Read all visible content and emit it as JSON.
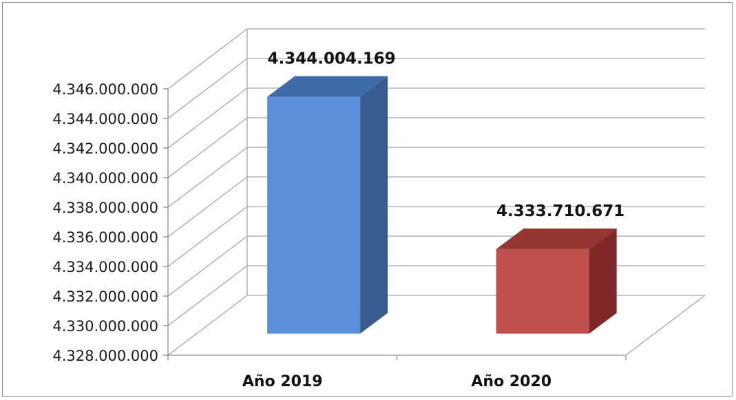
{
  "chart_data": {
    "type": "bar",
    "style": "3d-column",
    "categories": [
      "Año 2019",
      "Año 2020"
    ],
    "values": [
      4344004169,
      4333710671
    ],
    "data_labels": [
      "4.344.004.169",
      "4.333.710.671"
    ],
    "colors": [
      "#5b8fd9",
      "#c0504d"
    ],
    "side_colors": [
      "#375b8c",
      "#7f2a28"
    ],
    "top_colors": [
      "#3f6aa8",
      "#963632"
    ],
    "ylim": [
      4328000000,
      4346000000
    ],
    "ytick_step": 2000000,
    "yticks": [
      "4.328.000.000",
      "4.330.000.000",
      "4.332.000.000",
      "4.334.000.000",
      "4.336.000.000",
      "4.338.000.000",
      "4.340.000.000",
      "4.342.000.000",
      "4.344.000.000",
      "4.346.000.000"
    ],
    "grid": true,
    "legend": "none",
    "title": "",
    "xlabel": "",
    "ylabel": ""
  }
}
